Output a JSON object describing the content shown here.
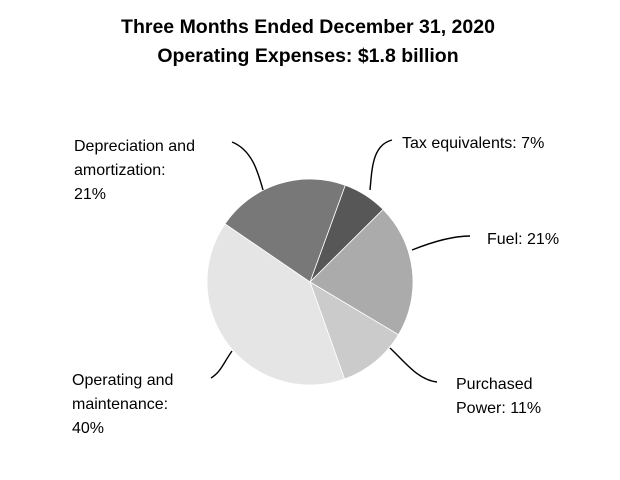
{
  "chart_data": {
    "type": "pie",
    "title": [
      "Three Months Ended December 31, 2020",
      "Operating Expenses: $1.8 billion"
    ],
    "slices": [
      {
        "label": "Tax equivalents",
        "value": 7,
        "display": "7%",
        "color": "#575757",
        "label_lines": [
          "Tax equivalents: 7%"
        ]
      },
      {
        "label": "Fuel",
        "value": 21,
        "display": "21%",
        "color": "#ababab",
        "label_lines": [
          "Fuel: 21%"
        ]
      },
      {
        "label": "Purchased Power",
        "value": 11,
        "display": "11%",
        "color": "#cbcbcb",
        "label_lines": [
          "Purchased",
          "Power: 11%"
        ]
      },
      {
        "label": "Operating and maintenance",
        "value": 40,
        "display": "40%",
        "color": "#e5e5e5",
        "label_lines": [
          "Operating and",
          "maintenance:",
          "40%"
        ]
      },
      {
        "label": "Depreciation and amortization",
        "value": 21,
        "display": "21%",
        "color": "#787878",
        "label_lines": [
          "Depreciation and",
          "amortization:",
          "21%"
        ]
      }
    ]
  }
}
